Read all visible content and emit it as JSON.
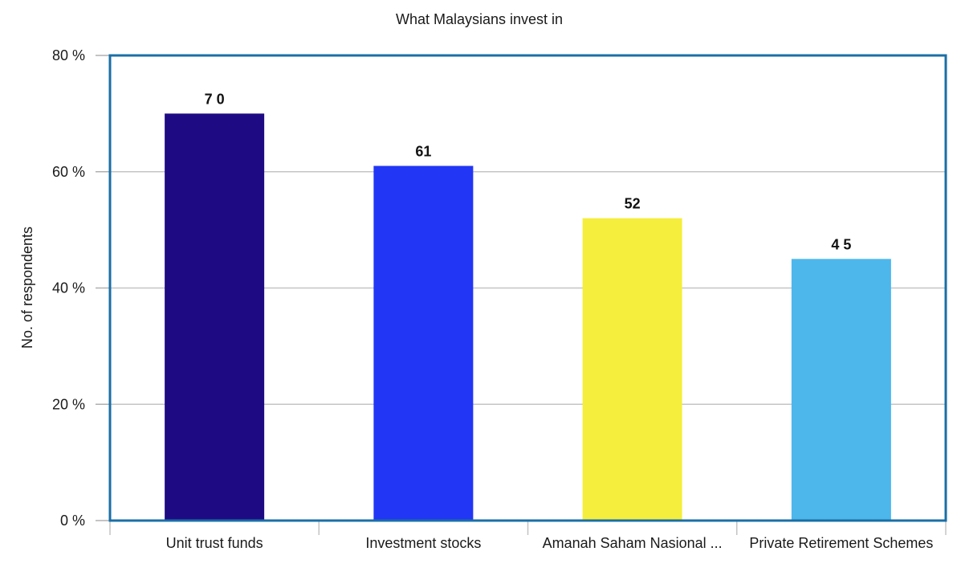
{
  "chart_data": {
    "type": "bar",
    "title": "What Malaysians invest in",
    "ylabel": "No. of respondents",
    "xlabel": "",
    "categories": [
      "Unit trust funds",
      "Investment stocks",
      "Amanah Saham Nasional ...",
      "Private Retirement Schemes"
    ],
    "values": [
      70,
      61,
      52,
      45
    ],
    "data_labels": [
      "7 0",
      "61",
      "52",
      "4 5"
    ],
    "ylim": [
      0,
      80
    ],
    "yticks": [
      0,
      20,
      40,
      60,
      80
    ],
    "ytick_labels": [
      "0 %",
      "20 %",
      "40 %",
      "60 %",
      "80 %"
    ],
    "bar_colors": [
      "#1e0b84",
      "#2236f5",
      "#f5ee3c",
      "#4db7ec"
    ],
    "plot_border_color": "#1a6fa6",
    "grid": true,
    "legend": "none"
  }
}
